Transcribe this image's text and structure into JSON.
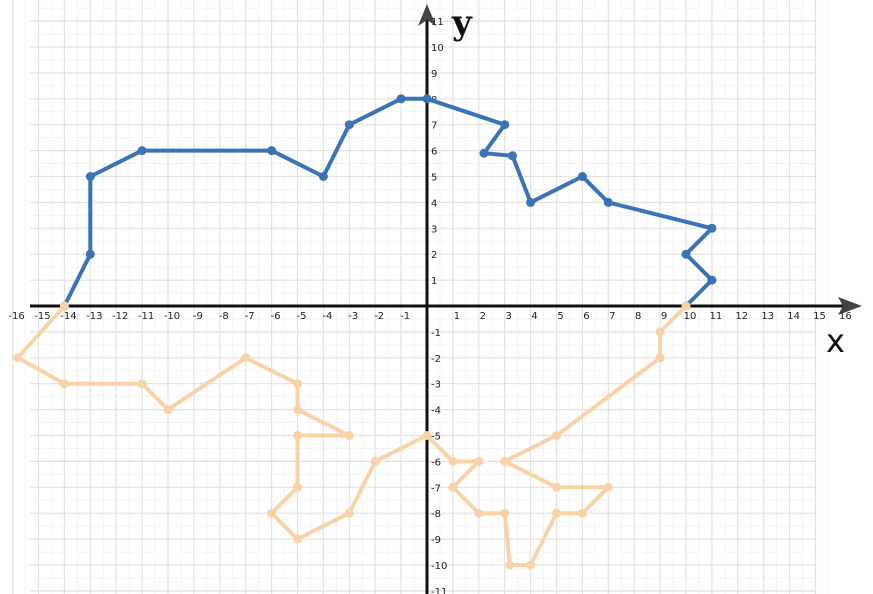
{
  "chart_data": {
    "type": "line",
    "title": "",
    "xlabel": "x",
    "ylabel": "y",
    "xlim": [
      -16,
      16
    ],
    "ylim": [
      -11,
      11
    ],
    "grid": true,
    "x_ticks": [
      -16,
      -15,
      -14,
      -13,
      -12,
      -11,
      -10,
      -9,
      -8,
      -7,
      -6,
      -5,
      -4,
      -3,
      -2,
      -1,
      1,
      2,
      3,
      4,
      5,
      6,
      7,
      8,
      9,
      10,
      11,
      12,
      13,
      14,
      15,
      16
    ],
    "y_ticks": [
      -11,
      -10,
      -9,
      -8,
      -7,
      -6,
      -5,
      -4,
      -3,
      -2,
      -1,
      1,
      2,
      3,
      4,
      5,
      6,
      7,
      8,
      9,
      10,
      11
    ],
    "series": [
      {
        "color": "#3b74b6",
        "points": [
          [
            -14,
            0
          ],
          [
            -13,
            2
          ],
          [
            -13,
            5
          ],
          [
            -11,
            6
          ],
          [
            -6,
            6
          ],
          [
            -4,
            5
          ],
          [
            -3,
            7
          ],
          [
            -1,
            8
          ],
          [
            0,
            8
          ],
          [
            3,
            7
          ],
          [
            2.2,
            5.9
          ],
          [
            3.3,
            5.8
          ],
          [
            4,
            4
          ],
          [
            6,
            5
          ],
          [
            7,
            4
          ],
          [
            11,
            3
          ],
          [
            10,
            2
          ],
          [
            11,
            1
          ],
          [
            10,
            0
          ]
        ]
      },
      {
        "color": "#f9d2a8",
        "points": [
          [
            10,
            0
          ],
          [
            9,
            -1
          ],
          [
            9,
            -2
          ],
          [
            5,
            -5
          ],
          [
            3,
            -6
          ],
          [
            5,
            -7
          ],
          [
            7,
            -7
          ],
          [
            6,
            -8
          ],
          [
            5,
            -8
          ],
          [
            4,
            -10
          ],
          [
            3.2,
            -10
          ],
          [
            3,
            -8
          ],
          [
            2,
            -8
          ],
          [
            1,
            -7
          ],
          [
            2,
            -6
          ],
          [
            1,
            -6
          ],
          [
            0,
            -5
          ],
          [
            -2,
            -6
          ],
          [
            -3,
            -8
          ],
          [
            -5,
            -9
          ],
          [
            -6,
            -8
          ],
          [
            -5,
            -7
          ],
          [
            -5,
            -5
          ],
          [
            -3,
            -5
          ],
          [
            -5,
            -4
          ],
          [
            -5,
            -3
          ],
          [
            -7,
            -2
          ],
          [
            -10,
            -4
          ],
          [
            -11,
            -3
          ],
          [
            -14,
            -3
          ],
          [
            -15.8,
            -2
          ],
          [
            -14,
            0
          ]
        ]
      }
    ]
  }
}
